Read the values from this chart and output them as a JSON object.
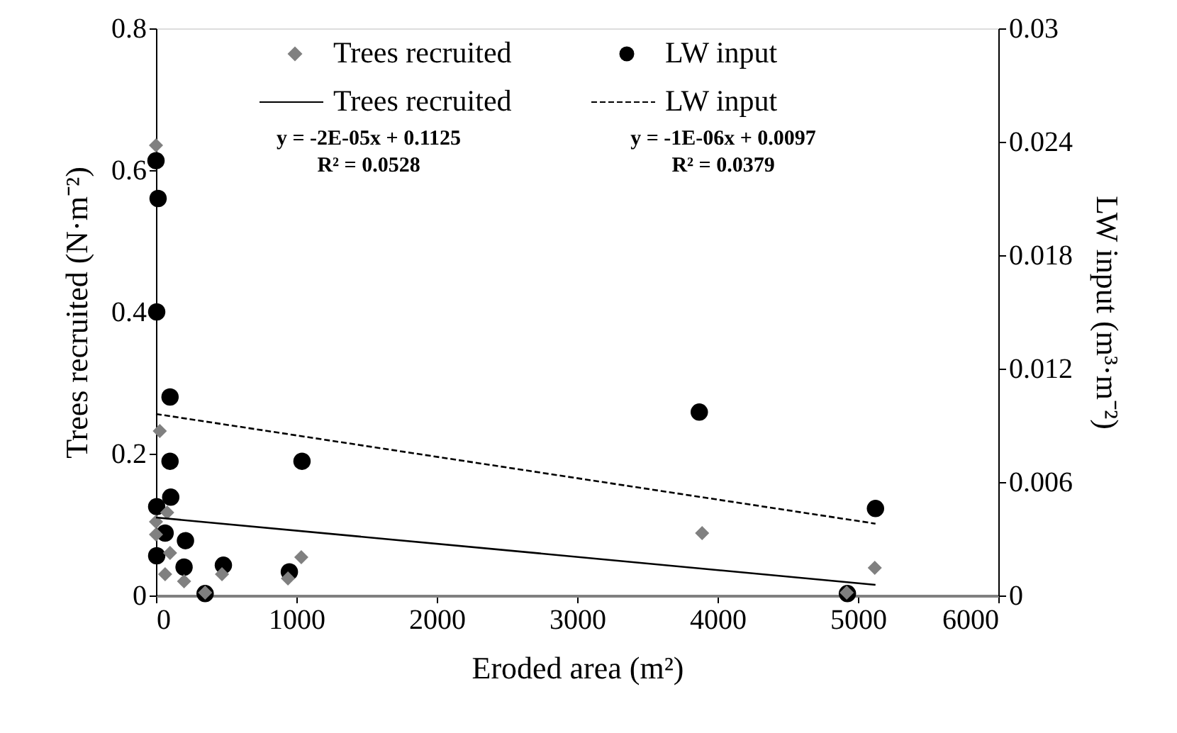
{
  "chart_data": {
    "type": "scatter",
    "xlabel": "Eroded area (m²)",
    "ylabel": "Trees recruited (N·m⁻²)",
    "y2label": "LW input (m³·m⁻²)",
    "xlim": [
      0,
      6000
    ],
    "xticks": [
      0,
      1000,
      2000,
      3000,
      4000,
      5000,
      6000
    ],
    "ylim": [
      0,
      0.8
    ],
    "yticks": [
      0,
      0.2,
      0.4,
      0.6,
      0.8
    ],
    "y2lim": [
      0,
      0.03
    ],
    "y2ticks": [
      0,
      0.006,
      0.012,
      0.018,
      0.024,
      0.03
    ],
    "grid": false,
    "legend": "top",
    "series": [
      {
        "name": "Trees recruited",
        "marker": "diamond",
        "color": "#808080",
        "x": [
          0,
          27,
          80,
          0,
          0,
          100,
          65,
          200,
          470,
          350,
          940,
          1035,
          3890,
          5120,
          4920
        ],
        "values": [
          0.635,
          0.232,
          0.117,
          0.104,
          0.086,
          0.06,
          0.03,
          0.02,
          0.03,
          0.004,
          0.024,
          0.054,
          0.088,
          0.039,
          0.004
        ]
      },
      {
        "name": "LW input",
        "marker": "circle",
        "axis": "y2",
        "color": "#000000",
        "x": [
          0,
          15,
          5,
          100,
          100,
          1040,
          105,
          5,
          65,
          210,
          5,
          200,
          480,
          950,
          350,
          5125,
          4925,
          3870
        ],
        "values": [
          0.023,
          0.021,
          0.015,
          0.0105,
          0.0071,
          0.0071,
          0.0052,
          0.0047,
          0.0033,
          0.0029,
          0.0021,
          0.0015,
          0.0016,
          0.00125,
          0.0001,
          0.0046,
          0.0001,
          0.0097
        ]
      },
      {
        "name": "Trees recruited",
        "type": "line",
        "line_style": "solid",
        "color": "#000000",
        "x": [
          0,
          5125
        ],
        "values": [
          0.11,
          0.015
        ]
      },
      {
        "name": "LW input",
        "type": "line",
        "line_style": "dashed",
        "axis": "y2",
        "color": "#000000",
        "x": [
          0,
          5125
        ],
        "values": [
          0.0096,
          0.0038
        ]
      }
    ],
    "annotations": [
      "y = -2E-05x + 0.1125\nR² = 0.0528",
      "y = -1E-06x + 0.0097\nR² = 0.0379"
    ]
  }
}
